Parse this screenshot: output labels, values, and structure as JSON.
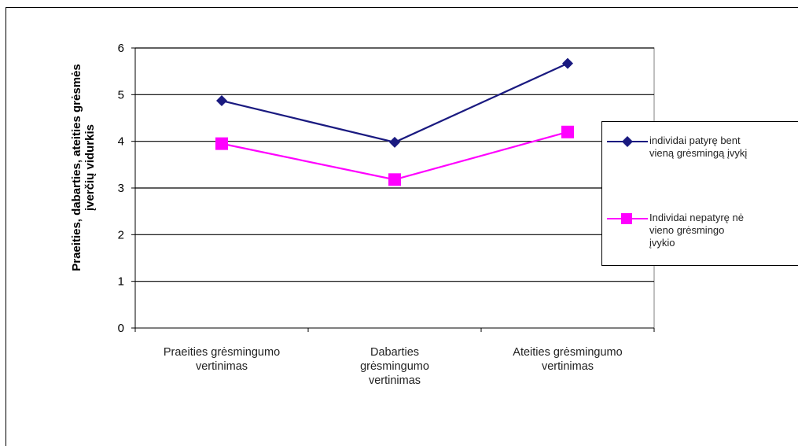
{
  "chart_data": {
    "type": "line",
    "categories": [
      "Praeities grėsmingumo vertinimas",
      "Dabarties grėsmingumo vertinimas",
      "Ateities grėsmingumo vertinimas"
    ],
    "series": [
      {
        "name": "individai patyrę bent vieną grėsmingą įvykį",
        "values": [
          4.87,
          3.98,
          5.67
        ],
        "color": "#1a1a80",
        "marker": "diamond"
      },
      {
        "name": "Individai nepatyrę nė vieno grėsmingo įvykio",
        "values": [
          3.95,
          3.18,
          4.2
        ],
        "color": "#ff00ff",
        "marker": "square"
      }
    ],
    "ylabel": "Praeities, dabarties, ateities grėsmės įverčių vidurkis",
    "ylim": [
      0,
      6
    ],
    "yticks": [
      "0",
      "1",
      "2",
      "3",
      "4",
      "5",
      "6"
    ],
    "grid": true,
    "legend": "right"
  },
  "category_lines": [
    [
      "Praeities grėsmingumo",
      "vertinimas"
    ],
    [
      "Dabarties",
      "grėsmingumo",
      "vertinimas"
    ],
    [
      "Ateities grėsmingumo",
      "vertinimas"
    ]
  ],
  "legend_lines": [
    [
      "individai patyrę bent",
      "vieną grėsmingą įvykį"
    ],
    [
      "Individai nepatyrę nė",
      "vieno grėsmingo",
      "įvykio"
    ]
  ],
  "ylabel_lines": [
    "Praeities, dabarties, ateities grėsmės",
    "įverčių vidurkis"
  ]
}
